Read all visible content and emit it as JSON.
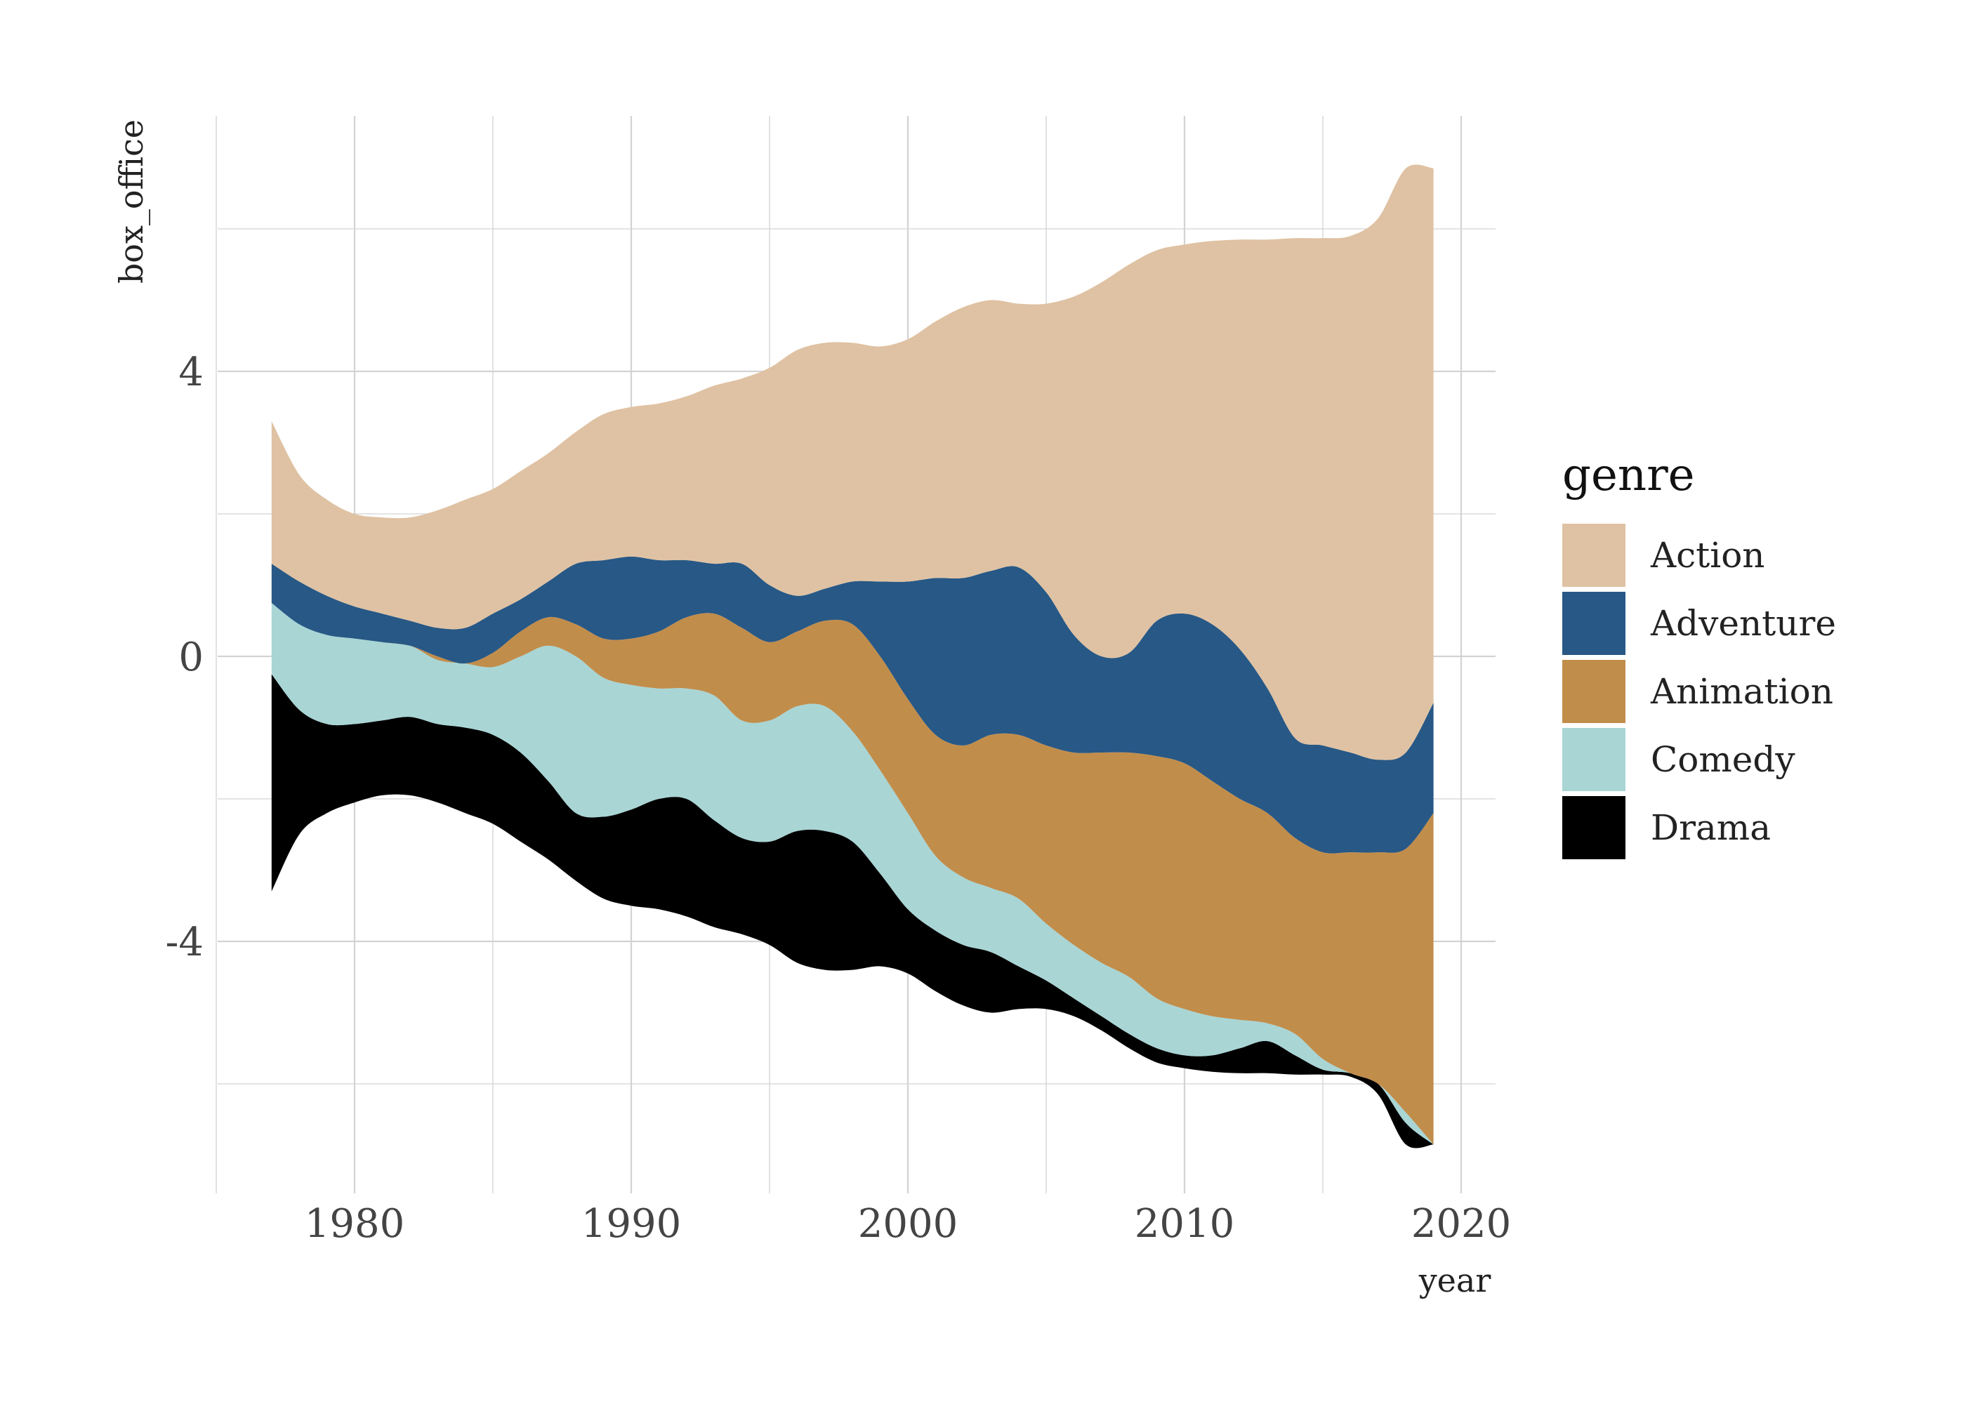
{
  "chart_data": {
    "type": "area",
    "subtype": "streamgraph",
    "xlabel": "year",
    "ylabel": "box_office",
    "xlim": [
      1975,
      2021
    ],
    "ylim": [
      -7.5,
      7.5
    ],
    "x_ticks": [
      1980,
      1990,
      2000,
      2010,
      2020
    ],
    "y_ticks": [
      -4,
      0,
      4
    ],
    "grid": true,
    "legend": {
      "title": "genre",
      "position": "right"
    },
    "boundaries": {
      "x": [
        1977,
        1978,
        1979,
        1980,
        1981,
        1982,
        1983,
        1984,
        1985,
        1986,
        1987,
        1988,
        1989,
        1990,
        1991,
        1992,
        1993,
        1994,
        1995,
        1996,
        1997,
        1998,
        1999,
        2000,
        2001,
        2002,
        2003,
        2004,
        2005,
        2006,
        2007,
        2008,
        2009,
        2010,
        2011,
        2012,
        2013,
        2014,
        2015,
        2016,
        2017,
        2018,
        2019
      ],
      "lines": [
        [
          -3.3,
          -2.5,
          -2.2,
          -2.05,
          -1.95,
          -1.95,
          -2.05,
          -2.2,
          -2.35,
          -2.6,
          -2.85,
          -3.15,
          -3.4,
          -3.5,
          -3.55,
          -3.65,
          -3.8,
          -3.9,
          -4.05,
          -4.3,
          -4.4,
          -4.4,
          -4.35,
          -4.45,
          -4.7,
          -4.9,
          -5.0,
          -4.95,
          -4.95,
          -5.05,
          -5.25,
          -5.5,
          -5.7,
          -5.78,
          -5.83,
          -5.85,
          -5.85,
          -5.87,
          -5.87,
          -5.9,
          -6.15,
          -6.85,
          -6.85
        ],
        [
          -0.25,
          -0.75,
          -0.95,
          -0.95,
          -0.9,
          -0.85,
          -0.95,
          -1.0,
          -1.1,
          -1.35,
          -1.75,
          -2.2,
          -2.25,
          -2.15,
          -2.0,
          -2.0,
          -2.3,
          -2.55,
          -2.6,
          -2.45,
          -2.45,
          -2.6,
          -3.05,
          -3.55,
          -3.85,
          -4.05,
          -4.15,
          -4.35,
          -4.55,
          -4.8,
          -5.05,
          -5.3,
          -5.5,
          -5.6,
          -5.6,
          -5.5,
          -5.4,
          -5.6,
          -5.8,
          -5.85,
          -6.0,
          -6.55,
          -6.85
        ],
        [
          0.75,
          0.45,
          0.3,
          0.25,
          0.2,
          0.15,
          -0.05,
          -0.1,
          -0.15,
          0.0,
          0.15,
          0.0,
          -0.3,
          -0.4,
          -0.45,
          -0.45,
          -0.55,
          -0.9,
          -0.9,
          -0.7,
          -0.7,
          -1.05,
          -1.6,
          -2.2,
          -2.8,
          -3.1,
          -3.25,
          -3.4,
          -3.75,
          -4.05,
          -4.3,
          -4.5,
          -4.8,
          -4.95,
          -5.05,
          -5.1,
          -5.15,
          -5.3,
          -5.65,
          -5.85,
          -6.0,
          -6.4,
          -6.85
        ],
        [
          0.75,
          0.45,
          0.3,
          0.25,
          0.2,
          0.15,
          0.0,
          -0.1,
          0.05,
          0.35,
          0.55,
          0.45,
          0.25,
          0.25,
          0.35,
          0.55,
          0.6,
          0.4,
          0.2,
          0.35,
          0.5,
          0.45,
          0.0,
          -0.6,
          -1.1,
          -1.25,
          -1.1,
          -1.1,
          -1.25,
          -1.35,
          -1.35,
          -1.35,
          -1.4,
          -1.5,
          -1.75,
          -2.0,
          -2.2,
          -2.55,
          -2.75,
          -2.75,
          -2.75,
          -2.7,
          -2.2
        ],
        [
          1.3,
          1.05,
          0.85,
          0.7,
          0.6,
          0.5,
          0.4,
          0.4,
          0.6,
          0.8,
          1.05,
          1.3,
          1.35,
          1.4,
          1.35,
          1.35,
          1.3,
          1.3,
          1.0,
          0.85,
          0.95,
          1.05,
          1.05,
          1.05,
          1.1,
          1.1,
          1.2,
          1.25,
          0.9,
          0.3,
          0.0,
          0.05,
          0.5,
          0.6,
          0.45,
          0.1,
          -0.45,
          -1.15,
          -1.25,
          -1.35,
          -1.45,
          -1.35,
          -0.65
        ],
        [
          3.3,
          2.55,
          2.2,
          2.0,
          1.95,
          1.95,
          2.05,
          2.2,
          2.35,
          2.6,
          2.85,
          3.15,
          3.4,
          3.5,
          3.55,
          3.65,
          3.8,
          3.9,
          4.05,
          4.3,
          4.4,
          4.4,
          4.35,
          4.45,
          4.7,
          4.9,
          5.0,
          4.95,
          4.95,
          5.05,
          5.25,
          5.5,
          5.7,
          5.78,
          5.83,
          5.85,
          5.85,
          5.87,
          5.87,
          5.9,
          6.15,
          6.85,
          6.85
        ]
      ]
    },
    "series": [
      {
        "name": "Drama",
        "color": "#000000"
      },
      {
        "name": "Comedy",
        "color": "#a9d5d5"
      },
      {
        "name": "Animation",
        "color": "#c18d4b"
      },
      {
        "name": "Adventure",
        "color": "#285885"
      },
      {
        "name": "Action",
        "color": "#dfc2a3"
      }
    ],
    "legend_items": [
      {
        "name": "Action",
        "color": "#dfc2a3"
      },
      {
        "name": "Adventure",
        "color": "#285885"
      },
      {
        "name": "Animation",
        "color": "#c18d4b"
      },
      {
        "name": "Comedy",
        "color": "#a9d5d5"
      },
      {
        "name": "Drama",
        "color": "#000000"
      }
    ],
    "colors": {
      "grid": "#d3d3d3",
      "text": "#444444",
      "background": "#ffffff"
    }
  }
}
